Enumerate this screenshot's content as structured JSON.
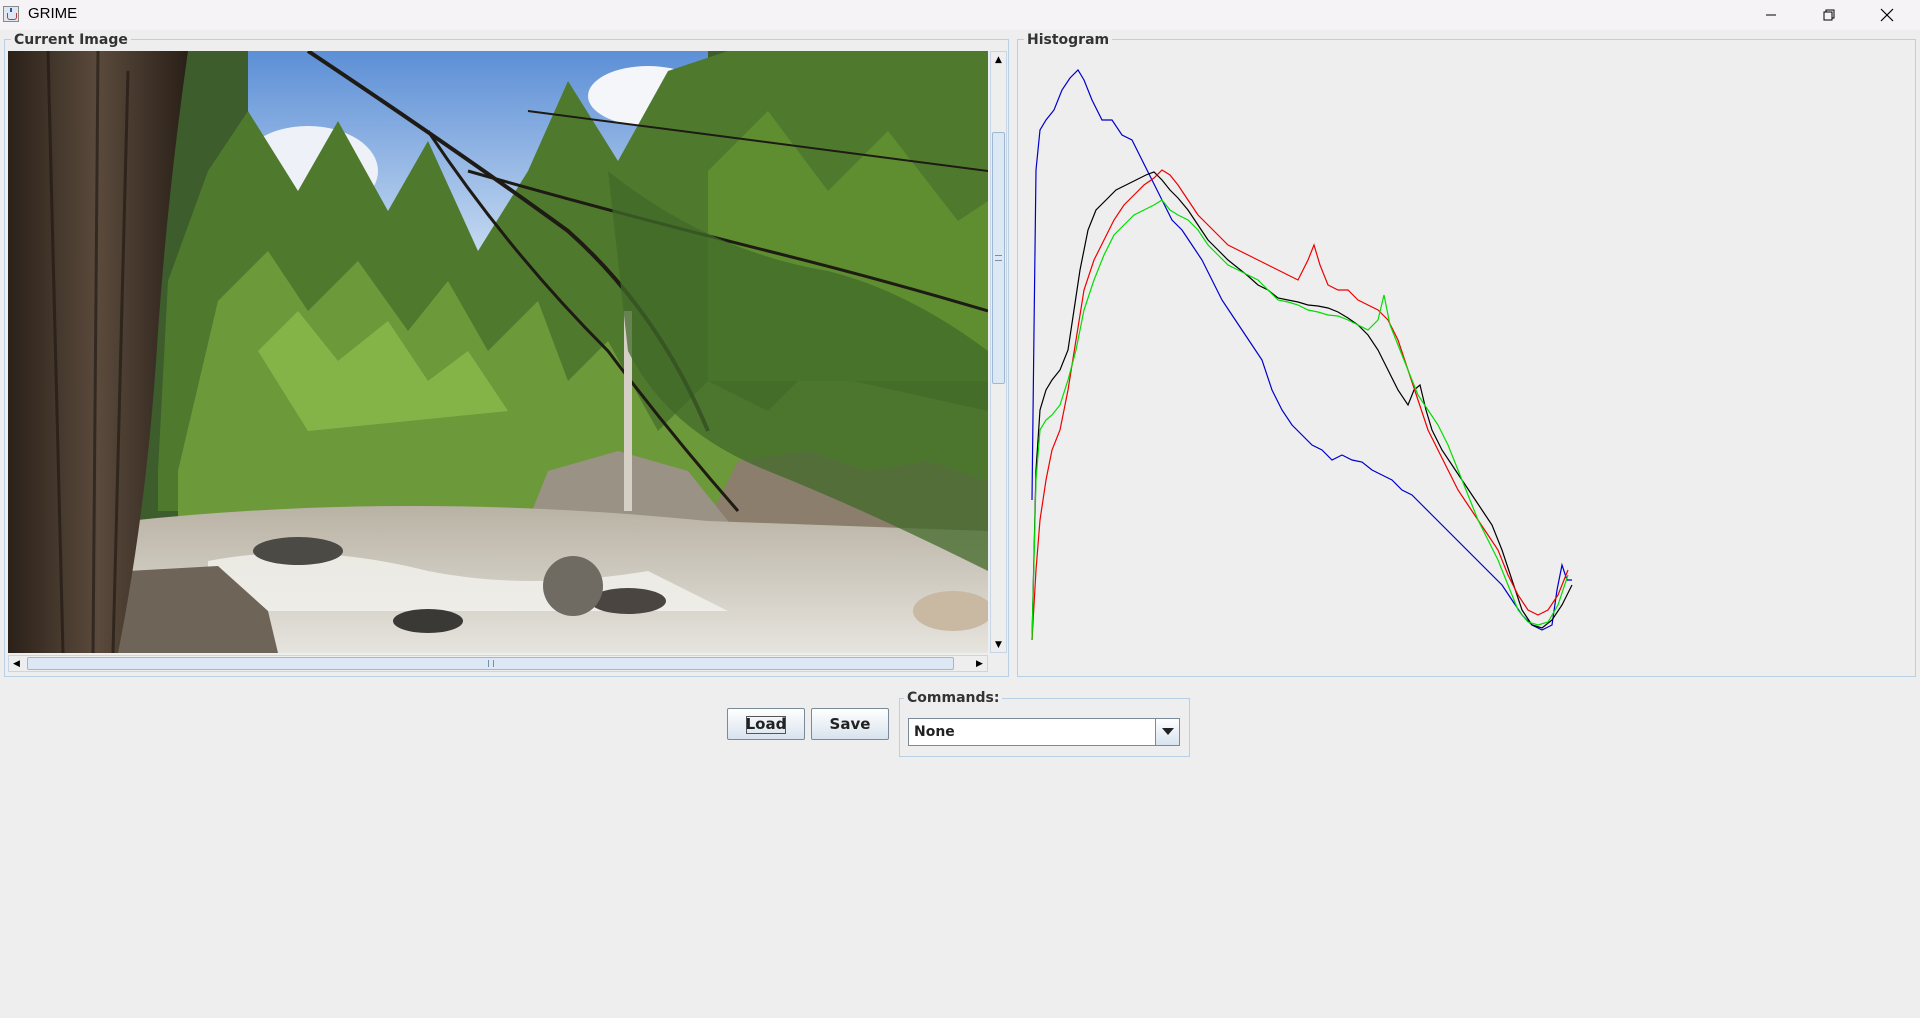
{
  "window": {
    "title": "GRIME",
    "controls": [
      "minimize-icon",
      "restore-icon",
      "close-icon"
    ]
  },
  "image_panel": {
    "label": "Current Image",
    "content": "forest river photograph"
  },
  "histogram_panel": {
    "label": "Histogram",
    "series_colors": {
      "blue": "#0000cc",
      "black": "#000000",
      "red": "#ee0000",
      "green": "#00dd00"
    }
  },
  "toolbar": {
    "load_label": "Load",
    "save_label": "Save"
  },
  "commands": {
    "label": "Commands:",
    "selected": "None"
  }
}
